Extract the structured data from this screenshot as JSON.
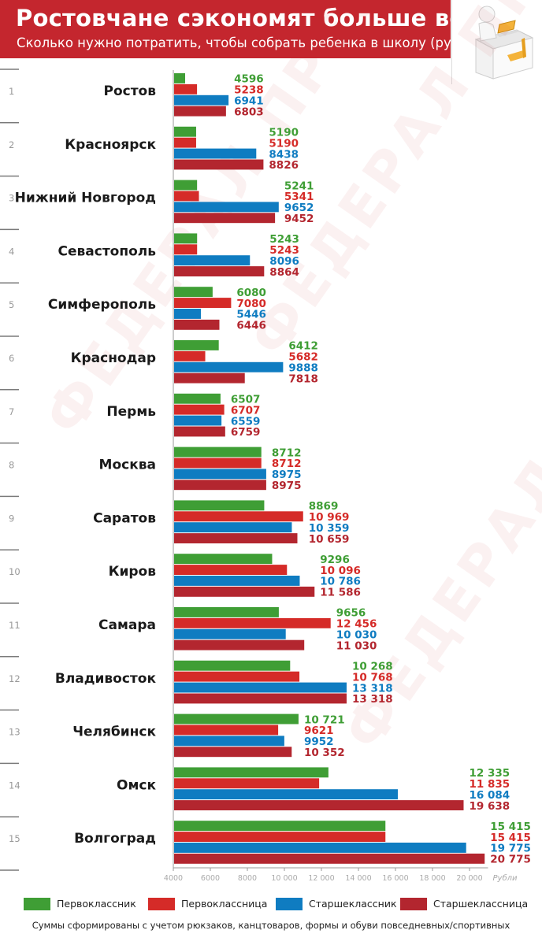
{
  "header": {
    "title": "Ростовчане сэкономят больше всех",
    "subtitle": "Сколько нужно потратить, чтобы собрать ребенка в школу (руб.)"
  },
  "watermark": {
    "text": "ФЕДЕРАЛ ПРЕСС"
  },
  "colors": {
    "header": "#c4262e",
    "green": "#3f9e35",
    "red": "#d52b28",
    "blue": "#0f7cc1",
    "darkred": "#b3262f"
  },
  "footnote": "Суммы сформированы с учетом рюкзаков, канцтоваров, формы и обуви повседневных/спортивных",
  "chart_data": {
    "type": "bar",
    "orientation": "horizontal",
    "xlabel": "Рубли",
    "xlim": [
      4000,
      21000
    ],
    "x_ticks": [
      4000,
      6000,
      8000,
      10000,
      12000,
      14000,
      16000,
      18000,
      20000
    ],
    "x_tick_labels": [
      "4000",
      "6000",
      "8000",
      "10 000",
      "12 000",
      "14 000",
      "16 000",
      "18 000",
      "20 000"
    ],
    "legend_position": "bottom",
    "categories": [
      "Ростов",
      "Красноярск",
      "Нижний Новгород",
      "Севастополь",
      "Симферополь",
      "Краснодар",
      "Пермь",
      "Москва",
      "Саратов",
      "Киров",
      "Самара",
      "Владивосток",
      "Челябинск",
      "Омск",
      "Волгоград"
    ],
    "ranks": [
      "1",
      "2",
      "3",
      "4",
      "5",
      "6",
      "7",
      "8",
      "9",
      "10",
      "11",
      "12",
      "13",
      "14",
      "15"
    ],
    "series": [
      {
        "name": "Первоклассник",
        "color": "#3f9e35",
        "values": [
          4596,
          5190,
          5241,
          5243,
          6080,
          6412,
          6507,
          8712,
          8869,
          9296,
          9656,
          10268,
          10721,
          12335,
          15415
        ],
        "labels": [
          "4596",
          "5190",
          "5241",
          "5243",
          "6080",
          "6412",
          "6507",
          "8712",
          "8869",
          "9296",
          "9656",
          "10 268",
          "10 721",
          "12 335",
          "15 415"
        ]
      },
      {
        "name": "Первоклассница",
        "color": "#d52b28",
        "values": [
          5238,
          5190,
          5341,
          5243,
          7080,
          5682,
          6707,
          8712,
          10969,
          10096,
          12456,
          10768,
          9621,
          11835,
          15415
        ],
        "labels": [
          "5238",
          "5190",
          "5341",
          "5243",
          "7080",
          "5682",
          "6707",
          "8712",
          "10 969",
          "10 096",
          "12 456",
          "10 768",
          "9621",
          "11 835",
          "15 415"
        ]
      },
      {
        "name": "Старшеклассник",
        "color": "#0f7cc1",
        "values": [
          6941,
          8438,
          9652,
          8096,
          5446,
          9888,
          6559,
          8975,
          10359,
          10786,
          10030,
          13318,
          9952,
          16084,
          19775
        ],
        "labels": [
          "6941",
          "8438",
          "9652",
          "8096",
          "5446",
          "9888",
          "6559",
          "8975",
          "10 359",
          "10 786",
          "10 030",
          "13 318",
          "9952",
          "16 084",
          "19 775"
        ]
      },
      {
        "name": "Старшеклассница",
        "color": "#b3262f",
        "values": [
          6803,
          8826,
          9452,
          8864,
          6446,
          7818,
          6759,
          8975,
          10659,
          11586,
          11030,
          13318,
          10352,
          19638,
          20775
        ],
        "labels": [
          "6803",
          "8826",
          "9452",
          "8864",
          "6446",
          "7818",
          "6759",
          "8975",
          "10 659",
          "11 586",
          "11 030",
          "13 318",
          "10 352",
          "19 638",
          "20 775"
        ]
      }
    ]
  }
}
